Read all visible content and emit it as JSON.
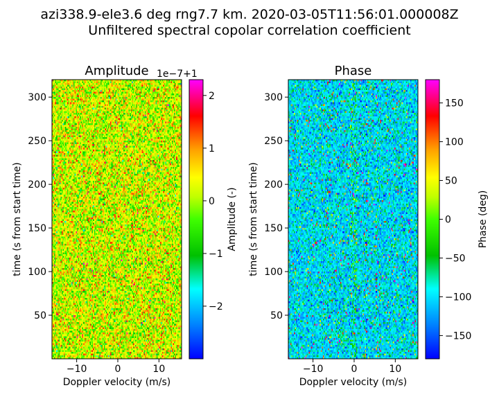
{
  "figure": {
    "title_line1": "azi338.9-ele3.6 deg rng7.7 km. 2020-03-05T11:56:01.000008Z",
    "title_line2": "Unfiltered spectral copolar correlation coefficient"
  },
  "chart_data": [
    {
      "type": "heatmap",
      "title": "Amplitude",
      "xlabel": "Doppler velocity (m/s)",
      "ylabel": "time (s from start time)",
      "xlim": [
        -16,
        15.5
      ],
      "ylim": [
        0,
        320
      ],
      "x_ticks": [
        -10,
        0,
        10
      ],
      "x_tick_labels": [
        "−10",
        "0",
        "10"
      ],
      "y_ticks": [
        50,
        100,
        150,
        200,
        250,
        300
      ],
      "y_tick_labels": [
        "50",
        "100",
        "150",
        "200",
        "250",
        "300"
      ],
      "colorbar": {
        "label": "Amplitude (-)",
        "offset_text": "1e−7+1",
        "range": [
          -3,
          2.3
        ],
        "ticks": [
          -2,
          -1,
          0,
          1,
          2
        ],
        "tick_labels": [
          "−2",
          "−1",
          "0",
          "1",
          "2"
        ],
        "colormap": "hsv-rainbow"
      },
      "value_summary": {
        "mean": 0.2,
        "std": 0.6,
        "description": "values concentrated between −1 and +1 (×1e−7 offset from 1), mostly yellow/green"
      }
    },
    {
      "type": "heatmap",
      "title": "Phase",
      "xlabel": "Doppler velocity (m/s)",
      "ylabel": "time (s from start time)",
      "xlim": [
        -16,
        15.5
      ],
      "ylim": [
        0,
        320
      ],
      "x_ticks": [
        -10,
        0,
        10
      ],
      "x_tick_labels": [
        "−10",
        "0",
        "10"
      ],
      "y_ticks": [
        50,
        100,
        150,
        200,
        250,
        300
      ],
      "y_tick_labels": [
        "50",
        "100",
        "150",
        "200",
        "250",
        "300"
      ],
      "colorbar": {
        "label": "Phase (deg)",
        "range": [
          -180,
          180
        ],
        "ticks": [
          -150,
          -100,
          -50,
          0,
          50,
          100,
          150
        ],
        "tick_labels": [
          "−150",
          "−100",
          "−50",
          "0",
          "50",
          "100",
          "150"
        ],
        "colormap": "hsv-rainbow"
      },
      "value_summary": {
        "mean": -100,
        "std": 25,
        "outlier_fraction": 0.08,
        "description": "noise field dominated by cyan (~−100 deg) with scattered speckles of other phases; slightly distinct band near 0 m/s"
      }
    }
  ]
}
